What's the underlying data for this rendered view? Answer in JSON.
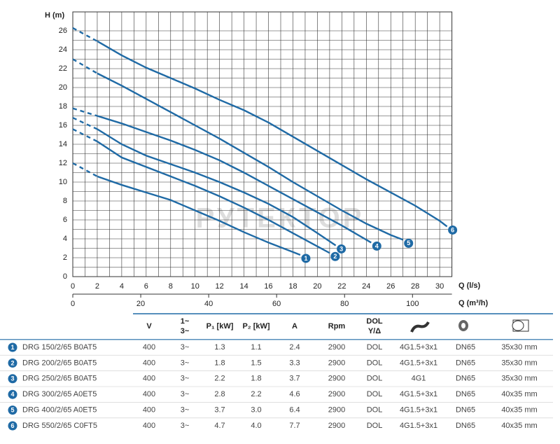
{
  "chart_data": {
    "type": "line",
    "ylabel": "H (m)",
    "xlabel": "Q (l/s)",
    "x2label": "Q (m³/h)",
    "watermark": "РУТЕКТОР",
    "xlim": [
      0,
      31
    ],
    "xticks": [
      0,
      2,
      4,
      6,
      8,
      10,
      12,
      14,
      16,
      18,
      20,
      22,
      24,
      26,
      28,
      30
    ],
    "x2lim": [
      0,
      111.6
    ],
    "x2ticks": [
      0,
      20,
      40,
      60,
      80,
      100
    ],
    "ylim": [
      0,
      28
    ],
    "yticks": [
      0,
      2,
      4,
      6,
      8,
      10,
      12,
      14,
      16,
      18,
      20,
      22,
      24,
      26
    ],
    "grid": true,
    "series": [
      {
        "name": "DRG 150/2/65 B0AT5",
        "marker": "1",
        "color": "#1f6aa5",
        "x": [
          0,
          2,
          4,
          6,
          8,
          10,
          12,
          14,
          16,
          18,
          18.6
        ],
        "values": [
          12,
          10.6,
          9.7,
          8.9,
          8.1,
          7,
          5.9,
          4.7,
          3.6,
          2.6,
          2.3
        ]
      },
      {
        "name": "DRG 200/2/65 B0AT5",
        "marker": "2",
        "color": "#1f6aa5",
        "x": [
          0,
          2,
          4,
          6,
          8,
          10,
          12,
          14,
          16,
          18,
          20,
          21
        ],
        "values": [
          15.6,
          14.3,
          12.6,
          11.6,
          10.6,
          9.6,
          8.5,
          7.3,
          6,
          4.6,
          3.2,
          2.5
        ]
      },
      {
        "name": "DRG 250/2/65 B0AT5",
        "marker": "3",
        "color": "#1f6aa5",
        "x": [
          0,
          2,
          4,
          6,
          8,
          10,
          12,
          14,
          16,
          18,
          20,
          21.5
        ],
        "values": [
          16.8,
          15.6,
          14,
          12.8,
          11.9,
          11,
          10,
          8.9,
          7.7,
          6.3,
          4.6,
          3.3
        ]
      },
      {
        "name": "DRG 300/2/65 A0ET5",
        "marker": "4",
        "color": "#1f6aa5",
        "x": [
          0,
          2,
          4,
          6,
          8,
          10,
          12,
          14,
          16,
          18,
          20,
          22,
          24.4
        ],
        "values": [
          17.8,
          17,
          16.2,
          15.3,
          14.4,
          13.4,
          12.3,
          11,
          9.6,
          8.2,
          6.8,
          5.4,
          3.6
        ]
      },
      {
        "name": "DRG 400/2/65 A0ET5",
        "marker": "5",
        "color": "#1f6aa5",
        "x": [
          0,
          2,
          4,
          6,
          8,
          10,
          12,
          14,
          16,
          18,
          20,
          22,
          24,
          26,
          27
        ],
        "values": [
          23,
          21.5,
          20.2,
          18.8,
          17.4,
          16,
          14.6,
          13.1,
          11.6,
          10,
          8.5,
          7,
          5.6,
          4.4,
          3.9
        ]
      },
      {
        "name": "DRG 550/2/65 C0FT5",
        "marker": "6",
        "color": "#1f6aa5",
        "x": [
          0,
          2,
          4,
          6,
          8,
          10,
          12,
          14,
          16,
          18,
          20,
          22,
          24,
          26,
          28,
          30,
          30.6
        ],
        "values": [
          26.3,
          24.9,
          23.4,
          22.1,
          21,
          19.9,
          18.7,
          17.6,
          16.3,
          14.8,
          13.3,
          11.8,
          10.3,
          8.9,
          7.5,
          5.9,
          5.3
        ]
      }
    ]
  },
  "table": {
    "header": [
      "V",
      [
        "1~",
        "3~"
      ],
      "P₁ [kW]",
      "P₂ [kW]",
      "A",
      "Rpm",
      [
        "DOL",
        "Y/Δ"
      ]
    ],
    "rows": [
      [
        "1",
        "DRG 150/2/65 B0AT5",
        "400",
        "3~",
        "1.3",
        "1.1",
        "2.4",
        "2900",
        "DOL",
        "4G1.5+3x1",
        "DN65",
        "35x30 mm"
      ],
      [
        "2",
        "DRG 200/2/65 B0AT5",
        "400",
        "3~",
        "1.8",
        "1.5",
        "3.3",
        "2900",
        "DOL",
        "4G1.5+3x1",
        "DN65",
        "35x30 mm"
      ],
      [
        "3",
        "DRG 250/2/65 B0AT5",
        "400",
        "3~",
        "2.2",
        "1.8",
        "3.7",
        "2900",
        "DOL",
        "4G1",
        "DN65",
        "35x30 mm"
      ],
      [
        "4",
        "DRG 300/2/65 A0ET5",
        "400",
        "3~",
        "2.8",
        "2.2",
        "4.6",
        "2900",
        "DOL",
        "4G1.5+3x1",
        "DN65",
        "40x35 mm"
      ],
      [
        "5",
        "DRG 400/2/65 A0ET5",
        "400",
        "3~",
        "3.7",
        "3.0",
        "6.4",
        "2900",
        "DOL",
        "4G1.5+3x1",
        "DN65",
        "40x35 mm"
      ],
      [
        "6",
        "DRG 550/2/65 C0FT5",
        "400",
        "3~",
        "4.7",
        "4.0",
        "7.7",
        "2900",
        "DOL",
        "4G1.5+3x1",
        "DN65",
        "40x35 mm"
      ]
    ]
  }
}
